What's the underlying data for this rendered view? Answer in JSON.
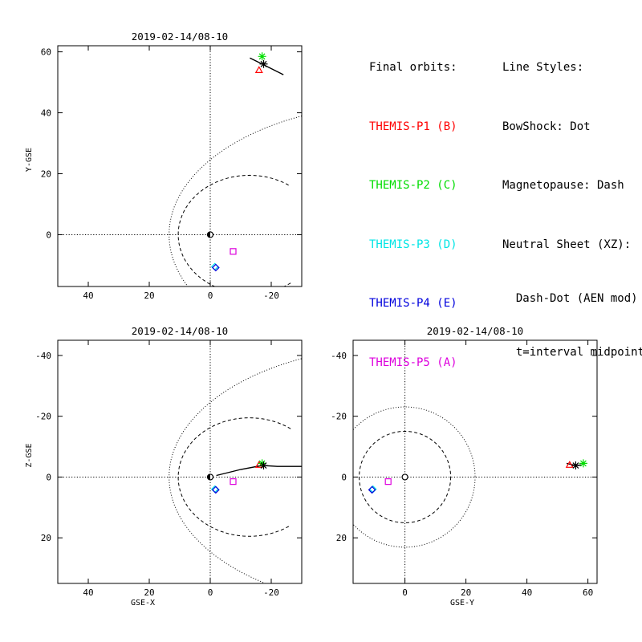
{
  "legend": {
    "orbits_title": "Final orbits:",
    "probes": [
      {
        "label": "THEMIS-P1 (B)",
        "color": "#ff0000"
      },
      {
        "label": "THEMIS-P2 (C)",
        "color": "#00dd00"
      },
      {
        "label": "THEMIS-P3 (D)",
        "color": "#00e5e5"
      },
      {
        "label": "THEMIS-P4 (E)",
        "color": "#0000dd"
      },
      {
        "label": "THEMIS-P5 (A)",
        "color": "#dd00dd"
      }
    ],
    "styles_title": "Line Styles:",
    "styles": [
      "BowShock: Dot",
      "Magnetopause: Dash",
      "Neutral Sheet (XZ):",
      "  Dash-Dot (AEN mod)",
      "  t=interval midpoint"
    ]
  },
  "chart_data": [
    {
      "type": "scatter",
      "title": "2019-02-14/08-10",
      "xlabel": "",
      "ylabel": "Y-GSE",
      "xlim": [
        50,
        -30
      ],
      "ylim": [
        62,
        -17
      ],
      "xticks": [
        40,
        20,
        0,
        -20
      ],
      "yticks": [
        0,
        20,
        40,
        60
      ],
      "boundaries": {
        "bow_shock": "dotted",
        "magnetopause": "dashed"
      },
      "earth": {
        "x": 0,
        "y": 0
      },
      "orbit_track": [
        [
          -13,
          58
        ],
        [
          -17,
          56
        ],
        [
          -20,
          54.5
        ],
        [
          -24,
          52.5
        ]
      ],
      "markers": [
        {
          "probe": "P1",
          "shape": "triangle",
          "color": "#ff0000",
          "x": -16,
          "y": 54
        },
        {
          "probe": "P2",
          "shape": "asterisk",
          "color": "#00dd00",
          "x": -17,
          "y": 58.5
        },
        {
          "probe": "P3",
          "shape": "diamond",
          "color": "#00e5e5",
          "x": -1.5,
          "y": -10.5
        },
        {
          "probe": "P4",
          "shape": "diamond",
          "color": "#0000dd",
          "x": -1.8,
          "y": -10.8
        },
        {
          "probe": "P5",
          "shape": "square",
          "color": "#dd00dd",
          "x": -7.5,
          "y": -5.5
        },
        {
          "probe": "midpoint",
          "shape": "asterisk",
          "color": "#000000",
          "x": -17.5,
          "y": 56
        }
      ]
    },
    {
      "type": "scatter",
      "title": "2019-02-14/08-10",
      "xlabel": "GSE-X",
      "ylabel": "Z-GSE",
      "xlim": [
        50,
        -30
      ],
      "ylim": [
        -45,
        35
      ],
      "xticks": [
        40,
        20,
        0,
        -20
      ],
      "yticks": [
        20,
        0,
        -20,
        -40
      ],
      "boundaries": {
        "bow_shock": "dotted",
        "magnetopause": "dashed"
      },
      "earth": {
        "x": 0,
        "y": 0
      },
      "orbit_track": [
        [
          -2,
          -0.5
        ],
        [
          -10,
          -2.5
        ],
        [
          -17,
          -3.8
        ],
        [
          -22,
          -3.5
        ],
        [
          -30,
          -3.5
        ]
      ],
      "markers": [
        {
          "probe": "P1",
          "shape": "triangle",
          "color": "#ff0000",
          "x": -16,
          "y": -4
        },
        {
          "probe": "P2",
          "shape": "asterisk",
          "color": "#00dd00",
          "x": -17,
          "y": -4.5
        },
        {
          "probe": "P3",
          "shape": "diamond",
          "color": "#00e5e5",
          "x": -1.5,
          "y": 4
        },
        {
          "probe": "P4",
          "shape": "diamond",
          "color": "#0000dd",
          "x": -1.8,
          "y": 4.2
        },
        {
          "probe": "P5",
          "shape": "square",
          "color": "#dd00dd",
          "x": -7.5,
          "y": 1.5
        },
        {
          "probe": "midpoint",
          "shape": "asterisk",
          "color": "#000000",
          "x": -17.5,
          "y": -3.8
        }
      ]
    },
    {
      "type": "scatter",
      "title": "2019-02-14/08-10",
      "xlabel": "GSE-Y",
      "ylabel": "",
      "xlim": [
        -17,
        63
      ],
      "ylim": [
        -45,
        35
      ],
      "xticks": [
        0,
        20,
        40,
        60
      ],
      "yticks": [
        20,
        0,
        -20,
        -40
      ],
      "boundaries": {
        "bow_shock_radius": 23,
        "magnetopause_radius": 15
      },
      "earth": {
        "x": 0,
        "y": 0
      },
      "orbit_track": [
        [
          53,
          -4.5
        ],
        [
          56,
          -3.8
        ],
        [
          58,
          -4
        ]
      ],
      "markers": [
        {
          "probe": "P1",
          "shape": "triangle",
          "color": "#ff0000",
          "x": 54,
          "y": -4
        },
        {
          "probe": "P2",
          "shape": "asterisk",
          "color": "#00dd00",
          "x": 58.5,
          "y": -4.5
        },
        {
          "probe": "P3",
          "shape": "diamond",
          "color": "#00e5e5",
          "x": -10.5,
          "y": 4
        },
        {
          "probe": "P4",
          "shape": "diamond",
          "color": "#0000dd",
          "x": -10.8,
          "y": 4.2
        },
        {
          "probe": "P5",
          "shape": "square",
          "color": "#dd00dd",
          "x": -5.5,
          "y": 1.5
        },
        {
          "probe": "midpoint",
          "shape": "asterisk",
          "color": "#000000",
          "x": 56,
          "y": -3.8
        }
      ]
    }
  ]
}
